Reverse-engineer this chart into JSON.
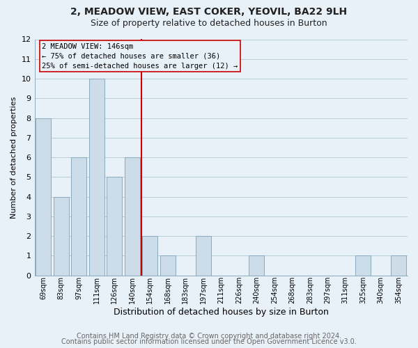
{
  "title_line1": "2, MEADOW VIEW, EAST COKER, YEOVIL, BA22 9LH",
  "title_line2": "Size of property relative to detached houses in Burton",
  "xlabel": "Distribution of detached houses by size in Burton",
  "ylabel": "Number of detached properties",
  "bar_labels": [
    "69sqm",
    "83sqm",
    "97sqm",
    "111sqm",
    "126sqm",
    "140sqm",
    "154sqm",
    "168sqm",
    "183sqm",
    "197sqm",
    "211sqm",
    "226sqm",
    "240sqm",
    "254sqm",
    "268sqm",
    "283sqm",
    "297sqm",
    "311sqm",
    "325sqm",
    "340sqm",
    "354sqm"
  ],
  "bar_values": [
    8,
    4,
    6,
    10,
    5,
    6,
    2,
    1,
    0,
    2,
    0,
    0,
    1,
    0,
    0,
    0,
    0,
    0,
    1,
    0,
    1
  ],
  "bar_color": "#ccdce8",
  "bar_edge_color": "#8aaabb",
  "grid_color": "#b8ccd8",
  "background_color": "#e8f0f8",
  "reference_line_x": 5.5,
  "reference_line_color": "#cc0000",
  "annotation_box_text": "2 MEADOW VIEW: 146sqm\n← 75% of detached houses are smaller (36)\n25% of semi-detached houses are larger (12) →",
  "annotation_box_edge_color": "#cc0000",
  "ylim": [
    0,
    12
  ],
  "yticks": [
    0,
    1,
    2,
    3,
    4,
    5,
    6,
    7,
    8,
    9,
    10,
    11,
    12
  ],
  "footer_line1": "Contains HM Land Registry data © Crown copyright and database right 2024.",
  "footer_line2": "Contains public sector information licensed under the Open Government Licence v3.0.",
  "title_fontsize": 10,
  "subtitle_fontsize": 9,
  "footer_fontsize": 7,
  "ylabel_fontsize": 8,
  "xlabel_fontsize": 9
}
